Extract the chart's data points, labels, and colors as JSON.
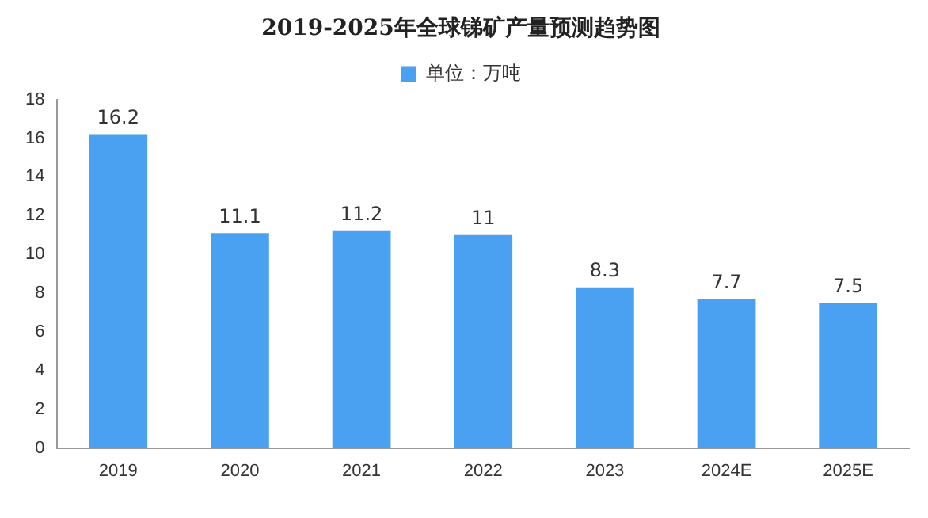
{
  "chart_data": {
    "type": "bar",
    "title": "2019-2025年全球锑矿产量预测趋势图",
    "categories": [
      "2019",
      "2020",
      "2021",
      "2022",
      "2023",
      "2024E",
      "2025E"
    ],
    "series": [
      {
        "name": "单位：万吨",
        "color": "#4ba1f1",
        "values": [
          16.2,
          11.1,
          11.2,
          11,
          8.3,
          7.7,
          7.5
        ]
      }
    ],
    "ylim": [
      0,
      18
    ],
    "yticks": [
      0,
      2,
      4,
      6,
      8,
      10,
      12,
      14,
      16,
      18
    ],
    "grid": false,
    "legend": "top",
    "data_labels": true
  }
}
